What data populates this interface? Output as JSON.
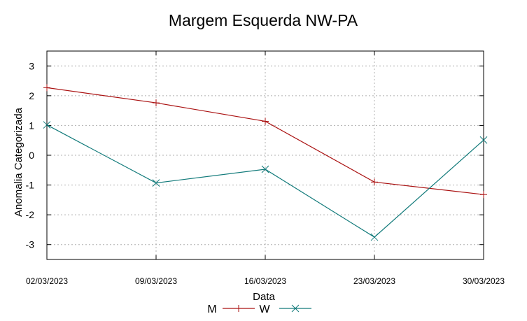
{
  "chart_data": {
    "type": "line",
    "title": "Margem Esquerda NW-PA",
    "xlabel": "Data",
    "ylabel": "Anomalia Categorizada",
    "categories": [
      "02/03/2023",
      "09/03/2023",
      "16/03/2023",
      "23/03/2023",
      "30/03/2023"
    ],
    "yticks": [
      "3",
      "2",
      "1",
      "0",
      "-1",
      "-2",
      "-3"
    ],
    "ylim": [
      -3.5,
      3.5
    ],
    "grid": true,
    "legend_position": "bottom-center",
    "series": [
      {
        "name": "M",
        "color": "#aa1111",
        "marker": "plus",
        "values": [
          2.27,
          1.76,
          1.14,
          -0.9,
          -1.32
        ]
      },
      {
        "name": "W",
        "color": "#117a7a",
        "marker": "cross",
        "values": [
          1.02,
          -0.93,
          -0.47,
          -2.75,
          0.51
        ]
      }
    ]
  }
}
